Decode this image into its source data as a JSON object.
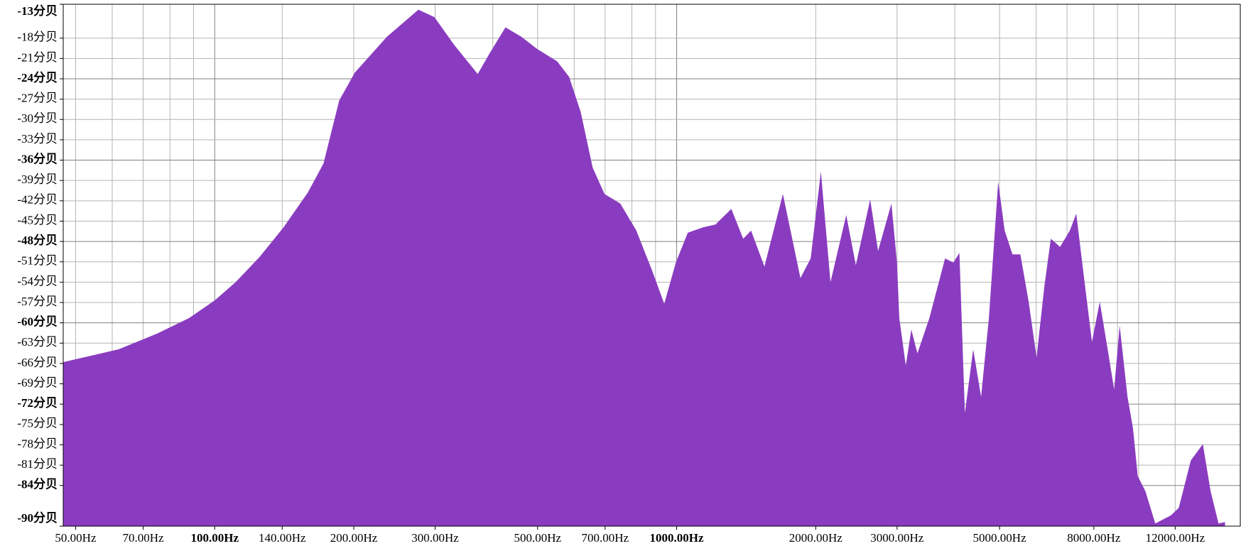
{
  "chart_data": {
    "type": "area",
    "log_x": true,
    "grid": true,
    "color": "#8a3cc0",
    "xlim": [
      47,
      16600
    ],
    "ylim": [
      -90,
      -13
    ],
    "xticks": [
      {
        "value": 50,
        "label": "50.00Hz"
      },
      {
        "value": 70,
        "label": "70.00Hz"
      },
      {
        "value": 100,
        "label": "100.00Hz"
      },
      {
        "value": 140,
        "label": "140.00Hz"
      },
      {
        "value": 200,
        "label": "200.00Hz"
      },
      {
        "value": 300,
        "label": "300.00Hz"
      },
      {
        "value": 500,
        "label": "500.00Hz"
      },
      {
        "value": 700,
        "label": "700.00Hz"
      },
      {
        "value": 1000,
        "label": "1000.00Hz"
      },
      {
        "value": 2000,
        "label": "2000.00Hz"
      },
      {
        "value": 3000,
        "label": "3000.00Hz"
      },
      {
        "value": 5000,
        "label": "5000.00Hz"
      },
      {
        "value": 8000,
        "label": "8000.00Hz"
      },
      {
        "value": 12000,
        "label": "12000.00Hz"
      }
    ],
    "xgrid": [
      60,
      80,
      90,
      400,
      600,
      800,
      900,
      4000,
      6000,
      7000,
      9000,
      10000
    ],
    "yticks": [
      {
        "value": -13,
        "label": "-13分贝"
      },
      {
        "value": -18,
        "label": "-18分贝"
      },
      {
        "value": -21,
        "label": "-21分贝"
      },
      {
        "value": -24,
        "label": "-24分贝"
      },
      {
        "value": -27,
        "label": "-27分贝"
      },
      {
        "value": -30,
        "label": "-30分贝"
      },
      {
        "value": -33,
        "label": "-33分贝"
      },
      {
        "value": -36,
        "label": "-36分贝"
      },
      {
        "value": -39,
        "label": "-39分贝"
      },
      {
        "value": -42,
        "label": "-42分贝"
      },
      {
        "value": -45,
        "label": "-45分贝"
      },
      {
        "value": -48,
        "label": "-48分贝"
      },
      {
        "value": -51,
        "label": "-51分贝"
      },
      {
        "value": -54,
        "label": "-54分贝"
      },
      {
        "value": -57,
        "label": "-57分贝"
      },
      {
        "value": -60,
        "label": "-60分贝"
      },
      {
        "value": -63,
        "label": "-63分贝"
      },
      {
        "value": -66,
        "label": "-66分贝"
      },
      {
        "value": -69,
        "label": "-69分贝"
      },
      {
        "value": -72,
        "label": "-72分贝"
      },
      {
        "value": -75,
        "label": "-75分贝"
      },
      {
        "value": -78,
        "label": "-78分贝"
      },
      {
        "value": -81,
        "label": "-81分贝"
      },
      {
        "value": -84,
        "label": "-84分贝"
      },
      {
        "value": -90,
        "label": "-90分贝"
      }
    ],
    "x": [
      47,
      62,
      75,
      88,
      100,
      111,
      125,
      141,
      159,
      172,
      186,
      201,
      236,
      276,
      299,
      330,
      371,
      394,
      426,
      461,
      499,
      551,
      585,
      620,
      658,
      698,
      755,
      818,
      885,
      940,
      996,
      1057,
      1143,
      1213,
      1313,
      1393,
      1449,
      1549,
      1698,
      1853,
      1950,
      2052,
      2153,
      2329,
      2443,
      2624,
      2729,
      2917,
      2999,
      3034,
      3133,
      3221,
      3321,
      3524,
      3811,
      3972,
      4093,
      4207,
      4385,
      4560,
      4742,
      4966,
      5129,
      5333,
      5546,
      5781,
      6012,
      6252,
      6457,
      6761,
      7096,
      7328,
      7621,
      7925,
      8241,
      8570,
      8851,
      9099,
      9462,
      9727,
      9954,
      10351,
      10864,
      11749,
      12218,
      12975,
      13772,
      14322,
      14894,
      15385
    ],
    "values": [
      -65.8,
      -63.9,
      -61.6,
      -59.3,
      -56.7,
      -54.0,
      -50.3,
      -45.9,
      -40.8,
      -36.5,
      -27.2,
      -23.1,
      -17.8,
      -13.8,
      -14.9,
      -19.0,
      -23.3,
      -20.2,
      -16.4,
      -17.8,
      -19.6,
      -21.4,
      -23.7,
      -28.9,
      -37.1,
      -41.0,
      -42.4,
      -46.4,
      -52.3,
      -57.2,
      -51.1,
      -46.7,
      -45.9,
      -45.5,
      -43.2,
      -47.6,
      -46.4,
      -51.7,
      -41.0,
      -53.4,
      -50.5,
      -37.7,
      -54.0,
      -44.1,
      -51.5,
      -41.8,
      -49.4,
      -42.4,
      -51.1,
      -59.3,
      -66.3,
      -61.0,
      -64.5,
      -59.3,
      -50.5,
      -51.1,
      -49.7,
      -73.3,
      -63.9,
      -70.9,
      -59.3,
      -39.2,
      -46.4,
      -49.9,
      -49.9,
      -56.9,
      -65.1,
      -54.6,
      -47.6,
      -48.8,
      -46.4,
      -43.9,
      -53.4,
      -62.8,
      -56.9,
      -63.9,
      -69.8,
      -60.4,
      -70.9,
      -75.6,
      -82.6,
      -84.9,
      -89.6,
      -88.4,
      -87.3,
      -80.3,
      -77.9,
      -84.9,
      -89.6,
      -89.4
    ]
  }
}
